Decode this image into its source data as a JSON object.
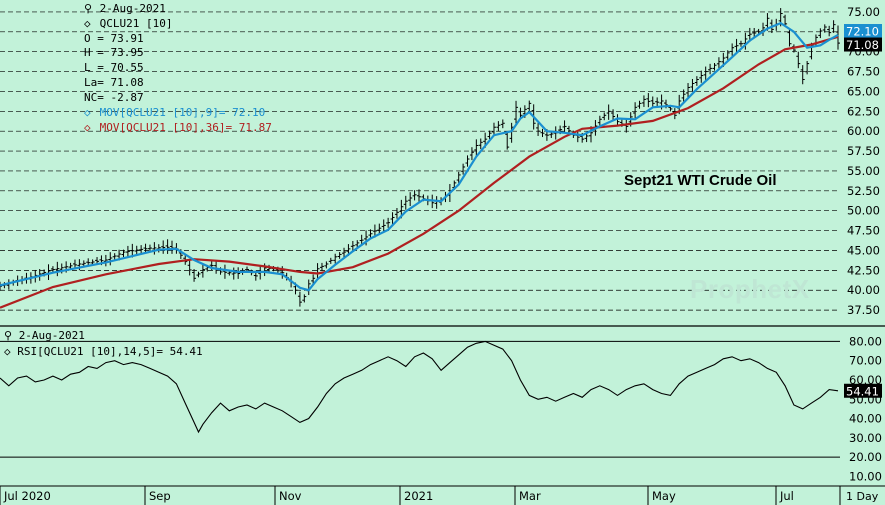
{
  "header": {
    "date": "2-Aug-2021",
    "symbol": "QCLU21 [10]",
    "open": "O = 73.91",
    "high": "H = 73.95",
    "low": "L = 70.55",
    "last": "La= 71.08",
    "net_change": "NC= -2.87",
    "ma_fast": "MOV[QCLU21 [10],9]= 72.10",
    "ma_slow": "MOV[QCLU21 [10],36]= 71.87"
  },
  "rsi_header": {
    "date": "2-Aug-2021",
    "label": "RSI[QCLU21 [10],14,5]= 54.41"
  },
  "annotation": "Sept21 WTI Crude Oil",
  "watermark": "ProphetX",
  "timeframe": "1 Day",
  "colors": {
    "background": "#c2f2d9",
    "price_bars": "#000000",
    "ma_fast": "#1a8fd0",
    "ma_slow": "#b02020",
    "rsi_line": "#000000",
    "last_price_tag": "#000000",
    "ma_fast_tag": "#1a8fd0"
  },
  "chart_data": [
    {
      "type": "ohlc",
      "title": "Sept21 WTI Crude Oil",
      "price_axis_ticks": [
        "37.50",
        "40.00",
        "42.50",
        "45.00",
        "47.50",
        "50.00",
        "52.50",
        "55.00",
        "57.50",
        "60.00",
        "62.50",
        "65.00",
        "67.50",
        "70.00",
        "72.50",
        "75.00"
      ],
      "ylim": [
        35.5,
        76.5
      ],
      "grid": true,
      "x_labels": [
        "Jul 2020",
        "Sep",
        "Nov",
        "2021",
        "Mar",
        "May",
        "Jul"
      ],
      "last_price_tag": "71.08",
      "ma_fast_tag": "72.10",
      "series": [
        {
          "name": "MOV[QCLU21 [10],9]",
          "last": 72.1
        },
        {
          "name": "MOV[QCLU21 [10],36]",
          "last": 71.87
        }
      ],
      "close_path": [
        [
          0,
          40.5
        ],
        [
          6,
          41.5
        ],
        [
          12,
          42.6
        ],
        [
          18,
          43.3
        ],
        [
          24,
          43.8
        ],
        [
          28,
          44.8
        ],
        [
          34,
          45.3
        ],
        [
          38,
          45.4
        ],
        [
          40,
          45.2
        ],
        [
          42,
          43.6
        ],
        [
          44,
          41.5
        ],
        [
          46,
          42.6
        ],
        [
          48,
          43.1
        ],
        [
          50,
          42.3
        ],
        [
          52,
          42.2
        ],
        [
          54,
          42.1
        ],
        [
          56,
          42.6
        ],
        [
          58,
          41.8
        ],
        [
          60,
          42.8
        ],
        [
          62,
          42.7
        ],
        [
          64,
          42.2
        ],
        [
          66,
          41.0
        ],
        [
          67,
          40.0
        ],
        [
          68,
          38.5
        ],
        [
          69,
          39.2
        ],
        [
          70,
          40.8
        ],
        [
          71,
          41.5
        ],
        [
          72,
          42.7
        ],
        [
          74,
          43.3
        ],
        [
          76,
          44.2
        ],
        [
          78,
          44.8
        ],
        [
          80,
          45.6
        ],
        [
          82,
          46.3
        ],
        [
          84,
          47.1
        ],
        [
          86,
          47.8
        ],
        [
          88,
          48.5
        ],
        [
          90,
          49.8
        ],
        [
          92,
          51.2
        ],
        [
          94,
          52.0
        ],
        [
          96,
          51.5
        ],
        [
          98,
          51.0
        ],
        [
          100,
          51.3
        ],
        [
          102,
          52.5
        ],
        [
          104,
          54.5
        ],
        [
          106,
          56.5
        ],
        [
          108,
          58.2
        ],
        [
          110,
          59.0
        ],
        [
          112,
          60.5
        ],
        [
          114,
          61.0
        ],
        [
          115,
          58.0
        ],
        [
          116,
          60.5
        ],
        [
          117,
          63.0
        ],
        [
          118,
          62.0
        ],
        [
          120,
          63.5
        ],
        [
          121,
          61.0
        ],
        [
          122,
          60.0
        ],
        [
          124,
          59.5
        ],
        [
          126,
          59.8
        ],
        [
          128,
          60.6
        ],
        [
          130,
          59.5
        ],
        [
          132,
          59.0
        ],
        [
          134,
          59.8
        ],
        [
          136,
          61.5
        ],
        [
          138,
          62.5
        ],
        [
          140,
          61.2
        ],
        [
          142,
          60.6
        ],
        [
          144,
          63.0
        ],
        [
          146,
          64.0
        ],
        [
          148,
          63.5
        ],
        [
          150,
          63.8
        ],
        [
          152,
          62.8
        ],
        [
          153,
          62.0
        ],
        [
          154,
          63.8
        ],
        [
          156,
          65.5
        ],
        [
          158,
          66.5
        ],
        [
          160,
          67.5
        ],
        [
          162,
          68.3
        ],
        [
          164,
          69.2
        ],
        [
          166,
          70.5
        ],
        [
          168,
          71.0
        ],
        [
          170,
          72.2
        ],
        [
          172,
          72.5
        ],
        [
          173,
          73.0
        ],
        [
          174,
          74.2
        ],
        [
          175,
          72.8
        ],
        [
          176,
          73.5
        ],
        [
          177,
          74.8
        ],
        [
          178,
          73.5
        ],
        [
          179,
          71.0
        ],
        [
          180,
          70.2
        ],
        [
          181,
          68.5
        ],
        [
          182,
          66.5
        ],
        [
          183,
          68.5
        ],
        [
          184,
          70.8
        ],
        [
          185,
          71.8
        ],
        [
          186,
          72.6
        ],
        [
          187,
          73.1
        ],
        [
          188,
          72.4
        ],
        [
          189,
          73.4
        ],
        [
          190,
          71.08
        ]
      ],
      "ma_fast_path": [
        [
          0,
          40.6
        ],
        [
          12,
          42.2
        ],
        [
          24,
          43.5
        ],
        [
          36,
          45.1
        ],
        [
          40,
          45.2
        ],
        [
          44,
          43.8
        ],
        [
          48,
          42.8
        ],
        [
          54,
          42.3
        ],
        [
          60,
          42.3
        ],
        [
          64,
          42.0
        ],
        [
          68,
          40.3
        ],
        [
          70,
          40.0
        ],
        [
          72,
          41.4
        ],
        [
          76,
          43.2
        ],
        [
          80,
          44.9
        ],
        [
          84,
          46.5
        ],
        [
          88,
          47.6
        ],
        [
          92,
          49.9
        ],
        [
          96,
          51.4
        ],
        [
          100,
          51.2
        ],
        [
          104,
          53.3
        ],
        [
          108,
          56.8
        ],
        [
          112,
          59.5
        ],
        [
          116,
          60.0
        ],
        [
          118,
          61.6
        ],
        [
          120,
          62.4
        ],
        [
          124,
          60.0
        ],
        [
          128,
          59.8
        ],
        [
          132,
          59.5
        ],
        [
          136,
          60.6
        ],
        [
          140,
          61.6
        ],
        [
          144,
          61.5
        ],
        [
          148,
          63.0
        ],
        [
          152,
          63.2
        ],
        [
          154,
          63.0
        ],
        [
          158,
          65.3
        ],
        [
          162,
          67.3
        ],
        [
          166,
          69.3
        ],
        [
          170,
          71.4
        ],
        [
          174,
          72.9
        ],
        [
          177,
          73.6
        ],
        [
          180,
          72.5
        ],
        [
          183,
          70.5
        ],
        [
          186,
          70.8
        ],
        [
          188,
          71.5
        ],
        [
          190,
          72.1
        ]
      ],
      "ma_slow_path": [
        [
          0,
          37.8
        ],
        [
          12,
          40.4
        ],
        [
          24,
          42.0
        ],
        [
          36,
          43.3
        ],
        [
          44,
          43.9
        ],
        [
          52,
          43.6
        ],
        [
          60,
          43.0
        ],
        [
          68,
          42.3
        ],
        [
          72,
          42.1
        ],
        [
          80,
          42.9
        ],
        [
          88,
          44.6
        ],
        [
          96,
          47.1
        ],
        [
          104,
          50.0
        ],
        [
          112,
          53.5
        ],
        [
          120,
          56.8
        ],
        [
          128,
          59.3
        ],
        [
          132,
          60.3
        ],
        [
          140,
          60.7
        ],
        [
          148,
          61.3
        ],
        [
          156,
          62.9
        ],
        [
          164,
          65.4
        ],
        [
          172,
          68.4
        ],
        [
          178,
          70.3
        ],
        [
          184,
          70.9
        ],
        [
          190,
          71.87
        ]
      ]
    },
    {
      "type": "line",
      "title": "RSI[QCLU21 [10],14,5]",
      "axis_ticks": [
        "10.00",
        "20.00",
        "30.00",
        "40.00",
        "50.00",
        "60.00",
        "70.00",
        "80.00"
      ],
      "ylim": [
        5,
        88
      ],
      "reference_lines": [
        20,
        80
      ],
      "last_value_tag": "54.41",
      "rsi_path": [
        [
          0,
          61
        ],
        [
          2,
          57
        ],
        [
          4,
          61
        ],
        [
          6,
          62
        ],
        [
          8,
          59
        ],
        [
          10,
          60
        ],
        [
          12,
          62
        ],
        [
          14,
          60
        ],
        [
          16,
          63
        ],
        [
          18,
          64
        ],
        [
          20,
          67
        ],
        [
          22,
          66
        ],
        [
          24,
          69
        ],
        [
          26,
          70
        ],
        [
          28,
          68
        ],
        [
          30,
          69
        ],
        [
          32,
          68
        ],
        [
          34,
          66
        ],
        [
          36,
          64
        ],
        [
          38,
          62
        ],
        [
          40,
          58
        ],
        [
          42,
          48
        ],
        [
          44,
          38
        ],
        [
          45,
          33
        ],
        [
          46,
          37
        ],
        [
          48,
          43
        ],
        [
          50,
          48
        ],
        [
          52,
          44
        ],
        [
          54,
          46
        ],
        [
          56,
          47
        ],
        [
          58,
          45
        ],
        [
          60,
          48
        ],
        [
          62,
          46
        ],
        [
          64,
          44
        ],
        [
          66,
          41
        ],
        [
          68,
          38
        ],
        [
          70,
          40
        ],
        [
          72,
          46
        ],
        [
          74,
          53
        ],
        [
          76,
          58
        ],
        [
          78,
          61
        ],
        [
          80,
          63
        ],
        [
          82,
          65
        ],
        [
          84,
          68
        ],
        [
          86,
          70
        ],
        [
          88,
          72
        ],
        [
          90,
          70
        ],
        [
          92,
          67
        ],
        [
          94,
          72
        ],
        [
          96,
          74
        ],
        [
          98,
          71
        ],
        [
          100,
          65
        ],
        [
          102,
          69
        ],
        [
          104,
          73
        ],
        [
          106,
          77
        ],
        [
          108,
          79
        ],
        [
          110,
          80
        ],
        [
          112,
          78
        ],
        [
          114,
          76
        ],
        [
          116,
          70
        ],
        [
          118,
          60
        ],
        [
          120,
          52
        ],
        [
          122,
          50
        ],
        [
          124,
          51
        ],
        [
          126,
          49
        ],
        [
          128,
          51
        ],
        [
          130,
          53
        ],
        [
          132,
          51
        ],
        [
          134,
          55
        ],
        [
          136,
          57
        ],
        [
          138,
          55
        ],
        [
          140,
          52
        ],
        [
          142,
          55
        ],
        [
          144,
          57
        ],
        [
          146,
          58
        ],
        [
          148,
          55
        ],
        [
          150,
          53
        ],
        [
          152,
          52
        ],
        [
          154,
          58
        ],
        [
          156,
          62
        ],
        [
          158,
          64
        ],
        [
          160,
          66
        ],
        [
          162,
          68
        ],
        [
          164,
          71
        ],
        [
          166,
          72
        ],
        [
          168,
          70
        ],
        [
          170,
          71
        ],
        [
          172,
          69
        ],
        [
          174,
          66
        ],
        [
          176,
          64
        ],
        [
          178,
          57
        ],
        [
          180,
          47
        ],
        [
          182,
          45
        ],
        [
          184,
          48
        ],
        [
          186,
          51
        ],
        [
          188,
          55
        ],
        [
          190,
          54.41
        ]
      ]
    }
  ]
}
